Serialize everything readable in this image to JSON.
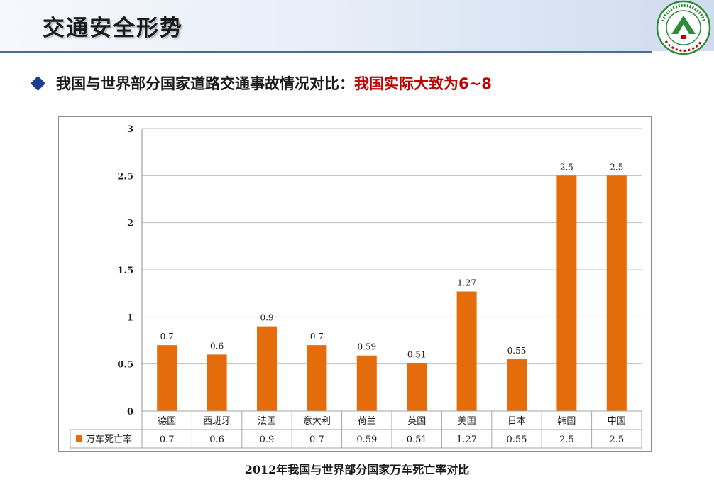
{
  "slide": {
    "title": "交通安全形势",
    "bullet_text": "我国与世界部分国家道路交通事故情况对比：",
    "bullet_highlight": "我国实际大致为6~8",
    "caption": "2012年我国与世界部分国家万车死亡率对比",
    "logo_icon": "university-seal-icon",
    "accent_color": "#e46c0a",
    "highlight_color": "#c00000"
  },
  "chart_data": {
    "type": "bar",
    "title": "",
    "xlabel": "",
    "ylabel": "",
    "categories": [
      "德国",
      "西班牙",
      "法国",
      "意大利",
      "荷兰",
      "英国",
      "美国",
      "日本",
      "韩国",
      "中国"
    ],
    "series": [
      {
        "name": "万车死亡率",
        "color": "#e46c0a",
        "values": [
          0.7,
          0.6,
          0.9,
          0.7,
          0.59,
          0.51,
          1.27,
          0.55,
          2.5,
          2.5
        ],
        "labels": [
          "0.7",
          "0.6",
          "0.9",
          "0.7",
          "0.59",
          "0.51",
          "1.27",
          "0.55",
          "2.5",
          "2.5"
        ]
      }
    ],
    "ylim": [
      0,
      3
    ],
    "yticks": [
      "0",
      "0.5",
      "1",
      "1.5",
      "2",
      "2.5",
      "3"
    ],
    "ytick_values": [
      0,
      0.5,
      1,
      1.5,
      2,
      2.5,
      3
    ],
    "grid": true,
    "data_table": true
  }
}
